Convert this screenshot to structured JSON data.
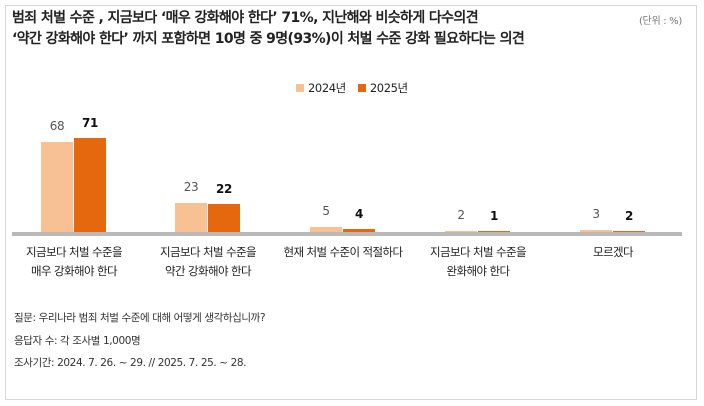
{
  "header": {
    "title_line1": "범죄 처벌 수준 , 지금보다 ‘매우 강화해야 한다’ 71%, 지난해와 비슷하게 다수의견",
    "title_line2": "‘약간 강화해야 한다’ 까지 포함하면 10명 중 9명(93%)이 처벌 수준 강화 필요하다는 의견",
    "unit": "(단위 : %)"
  },
  "legend": [
    {
      "label": "2024년",
      "color": "#f8c193"
    },
    {
      "label": "2025년",
      "color": "#e5680f"
    }
  ],
  "chart_data": {
    "type": "bar",
    "title": "범죄 처벌 수준 , 지금보다 ‘매우 강화해야 한다’ 71%, 지난해와 비슷하게 다수의견 / ‘약간 강화해야 한다’ 까지 포함하면 10명 중 9명(93%)이 처벌 수준 강화 필요하다는 의견",
    "unit": "%",
    "categories": [
      "지금보다 처벌 수준을 매우 강화해야 한다",
      "지금보다 처벌 수준을 약간 강화해야 한다",
      "현재 처벌 수준이 적절하다",
      "지금보다 처벌 수준을 완화해야 한다",
      "모르겠다"
    ],
    "series": [
      {
        "name": "2024년",
        "color": "#f8c193",
        "values": [
          68,
          23,
          5,
          2,
          3
        ]
      },
      {
        "name": "2025년",
        "color": "#e5680f",
        "values": [
          71,
          22,
          4,
          1,
          2
        ]
      }
    ],
    "xlabel": "",
    "ylabel": "",
    "ylim": [
      0,
      100
    ],
    "grid": false,
    "legend_position": "top-center",
    "data_labels": true
  },
  "categories_display": [
    {
      "line1": "지금보다 처벌 수준을",
      "line2": "매우 강화해야 한다"
    },
    {
      "line1": "지금보다 처벌 수준을",
      "line2": "약간 강화해야 한다"
    },
    {
      "line1": "현재 처벌 수준이 적절하다",
      "line2": ""
    },
    {
      "line1": "지금보다 처벌 수준을",
      "line2": "완화해야 한다"
    },
    {
      "line1": "모르겠다",
      "line2": ""
    }
  ],
  "labels": {
    "g0": {
      "y24": "68",
      "y25": "71"
    },
    "g1": {
      "y24": "23",
      "y25": "22"
    },
    "g2": {
      "y24": "5",
      "y25": "4"
    },
    "g3": {
      "y24": "2",
      "y25": "1"
    },
    "g4": {
      "y24": "3",
      "y25": "2"
    }
  },
  "notes": {
    "question": "질문: 우리나라 범죄 처벌 수준에 대해 어떻게 생각하십니까?",
    "respondents": "응답자 수: 각 조사별 1,000명",
    "period": "조사기간: 2024. 7. 26. ~ 29. // 2025. 7. 25. ~ 28."
  }
}
